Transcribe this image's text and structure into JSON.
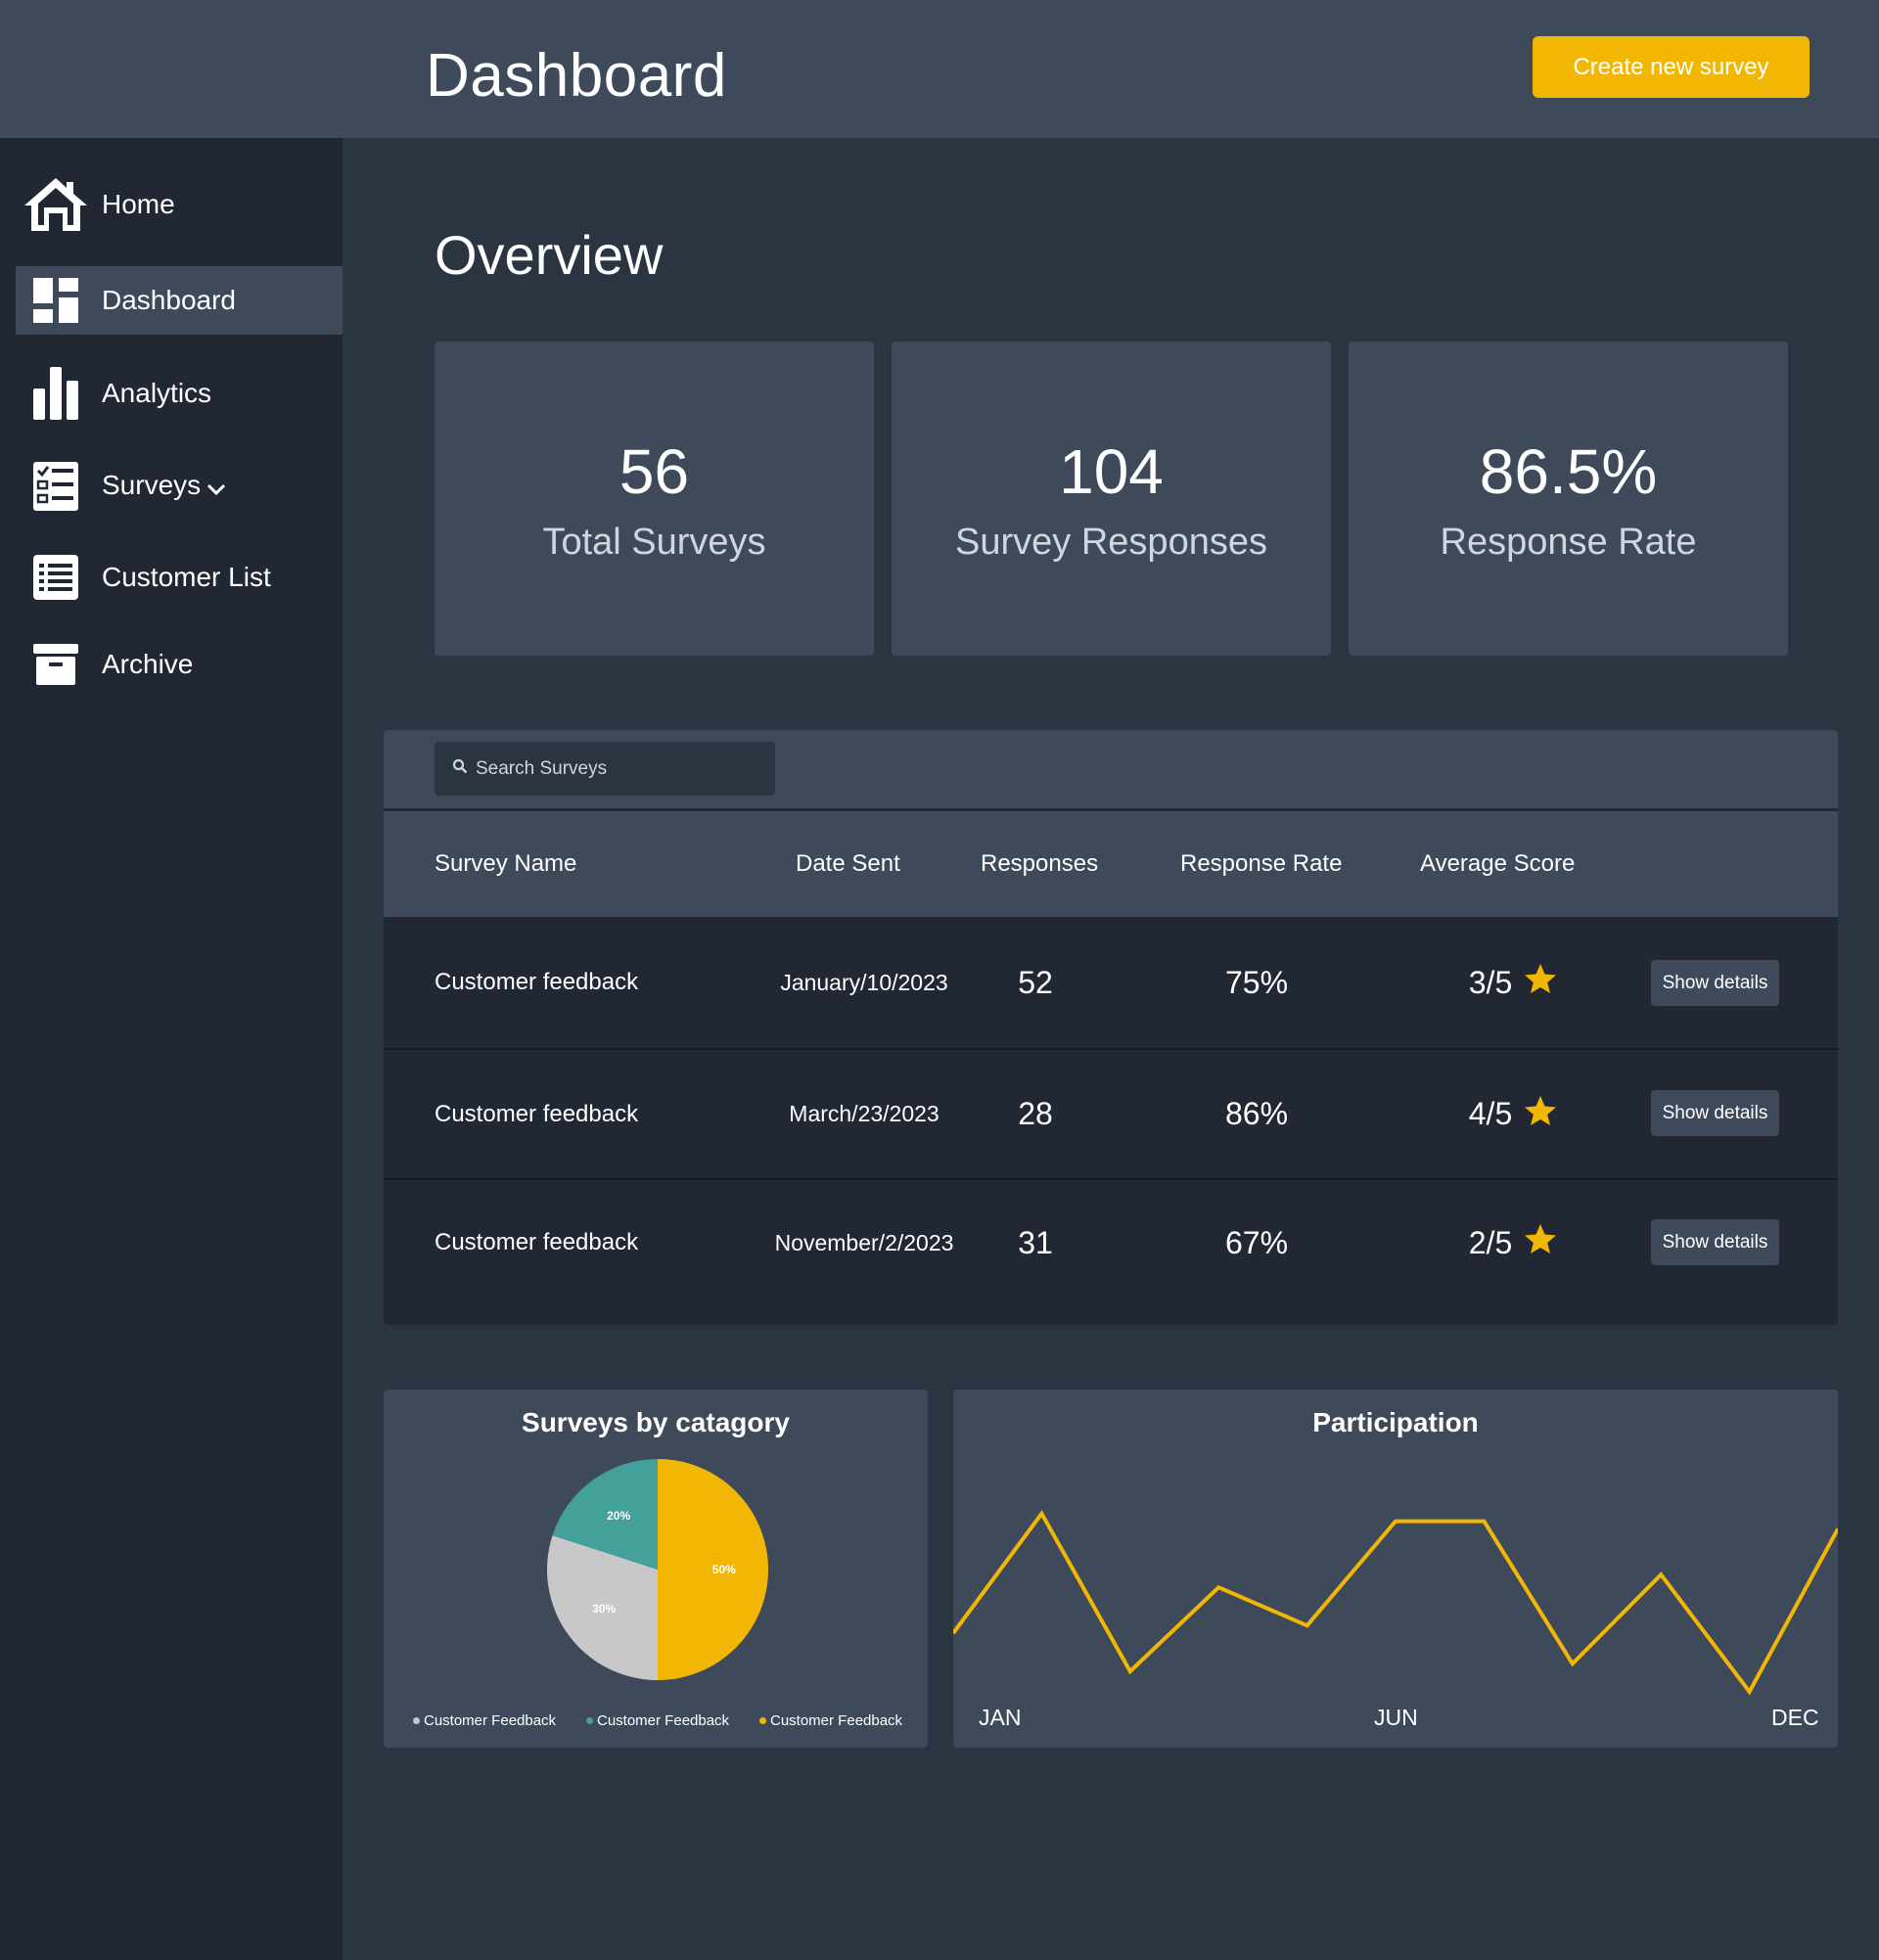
{
  "header": {
    "title": "Dashboard",
    "create_button": "Create new survey"
  },
  "sidebar": {
    "items": [
      {
        "label": "Home",
        "icon": "home-icon"
      },
      {
        "label": "Dashboard",
        "icon": "dashboard-icon",
        "active": true
      },
      {
        "label": "Analytics",
        "icon": "bar-chart-icon"
      },
      {
        "label": "Surveys",
        "icon": "checklist-icon",
        "has_dropdown": true
      },
      {
        "label": "Customer List",
        "icon": "list-icon"
      },
      {
        "label": "Archive",
        "icon": "archive-icon"
      }
    ]
  },
  "overview": {
    "title": "Overview",
    "stats": [
      {
        "value": "56",
        "label": "Total Surveys"
      },
      {
        "value": "104",
        "label": "Survey Responses"
      },
      {
        "value": "86.5%",
        "label": "Response Rate"
      }
    ]
  },
  "table": {
    "search_placeholder": "Search Surveys",
    "headers": [
      "Survey Name",
      "Date Sent",
      "Responses",
      "Response Rate",
      "Average Score"
    ],
    "rows": [
      {
        "name": "Customer feedback",
        "date": "January/10/2023",
        "responses": "52",
        "rate": "75%",
        "score": "3/5",
        "action": "Show details"
      },
      {
        "name": "Customer feedback",
        "date": "March/23/2023",
        "responses": "28",
        "rate": "86%",
        "score": "4/5",
        "action": "Show details"
      },
      {
        "name": "Customer feedback",
        "date": "November/2/2023",
        "responses": "31",
        "rate": "67%",
        "score": "2/5",
        "action": "Show details"
      }
    ]
  },
  "colors": {
    "accent": "#f2b705",
    "teal": "#43a09a",
    "gray": "#c8c8c8",
    "panel": "#3e4a5a",
    "sidebar": "#212833",
    "background": "#2b3441"
  },
  "chart_data": [
    {
      "type": "pie",
      "title": "Surveys by catagory",
      "slices": [
        {
          "label": "50%",
          "value": 50,
          "color": "#f2b705"
        },
        {
          "label": "30%",
          "value": 30,
          "color": "#c8c8c8"
        },
        {
          "label": "20%",
          "value": 20,
          "color": "#43a09a"
        }
      ],
      "legend": [
        {
          "name": "Customer Feedback",
          "color": "#c8c8c8"
        },
        {
          "name": "Customer Feedback",
          "color": "#43a09a"
        },
        {
          "name": "Customer Feedback",
          "color": "#f2b705"
        }
      ],
      "legend_position": "bottom"
    },
    {
      "type": "line",
      "title": "Participation",
      "tick_labels": [
        "JAN",
        "JUN",
        "DEC"
      ],
      "values": [
        35,
        82,
        20,
        53,
        38,
        79,
        79,
        23,
        58,
        12,
        76
      ],
      "ylim": [
        0,
        100
      ],
      "color": "#f2b705",
      "grid": false
    }
  ]
}
